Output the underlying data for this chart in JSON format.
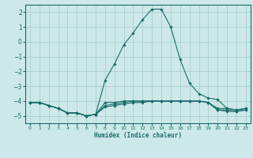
{
  "xlabel": "Humidex (Indice chaleur)",
  "ylabel": "",
  "bg_color": "#cce8e8",
  "grid_color": "#aacece",
  "line_color": "#1a6b6b",
  "xlim": [
    -0.5,
    23.5
  ],
  "ylim": [
    -5.5,
    2.5
  ],
  "xticks": [
    0,
    1,
    2,
    3,
    4,
    5,
    6,
    7,
    8,
    9,
    10,
    11,
    12,
    13,
    14,
    15,
    16,
    17,
    18,
    19,
    20,
    21,
    22,
    23
  ],
  "yticks": [
    -5,
    -4,
    -3,
    -2,
    -1,
    0,
    1,
    2
  ],
  "series": [
    {
      "x": [
        0,
        1,
        2,
        3,
        4,
        5,
        6,
        7,
        8,
        9,
        10,
        11,
        12,
        13,
        14,
        15,
        16,
        17,
        18,
        19,
        20,
        21,
        22,
        23
      ],
      "y": [
        -4.1,
        -4.1,
        -4.3,
        -4.5,
        -4.8,
        -4.8,
        -5.0,
        -4.9,
        -2.6,
        -1.5,
        -0.2,
        0.6,
        1.5,
        2.2,
        2.2,
        1.0,
        -1.2,
        -2.8,
        -3.5,
        -3.8,
        -3.9,
        -4.5,
        -4.6,
        -4.5
      ]
    },
    {
      "x": [
        0,
        1,
        2,
        3,
        4,
        5,
        6,
        7,
        8,
        9,
        10,
        11,
        12,
        13,
        14,
        15,
        16,
        17,
        18,
        19,
        20,
        21,
        22,
        23
      ],
      "y": [
        -4.1,
        -4.1,
        -4.3,
        -4.5,
        -4.8,
        -4.8,
        -5.0,
        -4.9,
        -4.1,
        -4.1,
        -4.0,
        -4.0,
        -4.0,
        -4.0,
        -4.0,
        -4.0,
        -4.0,
        -4.0,
        -4.0,
        -4.1,
        -4.6,
        -4.6,
        -4.7,
        -4.6
      ]
    },
    {
      "x": [
        0,
        1,
        2,
        3,
        4,
        5,
        6,
        7,
        8,
        9,
        10,
        11,
        12,
        13,
        14,
        15,
        16,
        17,
        18,
        19,
        20,
        21,
        22,
        23
      ],
      "y": [
        -4.1,
        -4.1,
        -4.3,
        -4.5,
        -4.8,
        -4.8,
        -5.0,
        -4.9,
        -4.3,
        -4.2,
        -4.1,
        -4.0,
        -4.0,
        -4.0,
        -4.0,
        -4.0,
        -4.0,
        -4.0,
        -4.0,
        -4.1,
        -4.5,
        -4.5,
        -4.6,
        -4.5
      ]
    },
    {
      "x": [
        0,
        1,
        2,
        3,
        4,
        5,
        6,
        7,
        8,
        9,
        10,
        11,
        12,
        13,
        14,
        15,
        16,
        17,
        18,
        19,
        20,
        21,
        22,
        23
      ],
      "y": [
        -4.1,
        -4.1,
        -4.3,
        -4.5,
        -4.8,
        -4.8,
        -5.0,
        -4.9,
        -4.4,
        -4.3,
        -4.2,
        -4.1,
        -4.1,
        -4.0,
        -4.0,
        -4.0,
        -4.0,
        -4.0,
        -4.0,
        -4.1,
        -4.6,
        -4.7,
        -4.7,
        -4.6
      ]
    }
  ]
}
